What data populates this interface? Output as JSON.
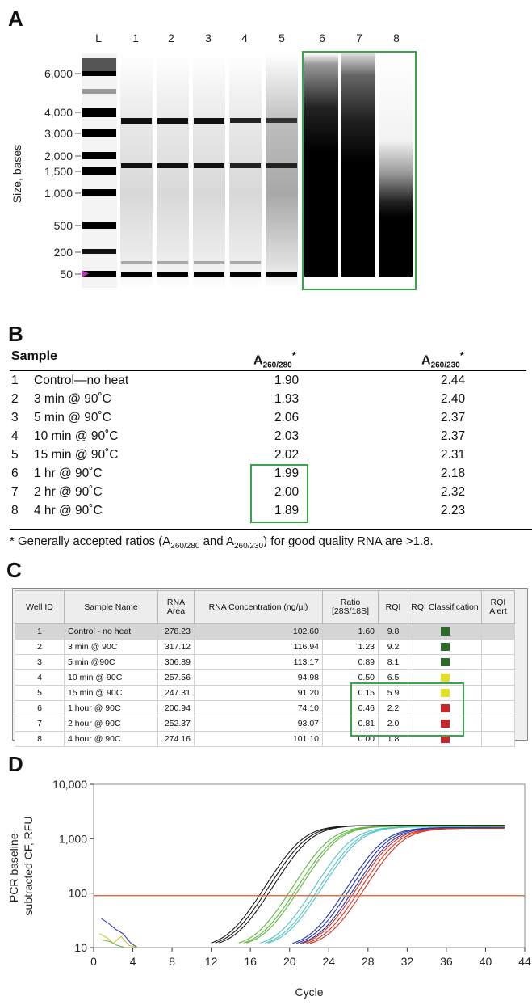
{
  "panels": {
    "a": {
      "letter": "A",
      "lane_labels": [
        "L",
        "1",
        "2",
        "3",
        "4",
        "5",
        "6",
        "7",
        "8"
      ],
      "y_axis_label": "Size, bases",
      "size_ticks": [
        "6,000",
        "4,000",
        "3,000",
        "2,000",
        "1,500",
        "1,000",
        "500",
        "200",
        "50"
      ]
    },
    "b": {
      "letter": "B",
      "header": {
        "sample": "Sample",
        "a260_280": "A",
        "a260_280_sub": "260/280",
        "a260_230": "A",
        "a260_230_sub": "260/230",
        "star": "*"
      },
      "rows": [
        {
          "num": "1",
          "name": "Control—no heat",
          "a280": "1.90",
          "a230": "2.44"
        },
        {
          "num": "2",
          "name": "3 min @ 90˚C",
          "a280": "1.93",
          "a230": "2.40"
        },
        {
          "num": "3",
          "name": "5 min @ 90˚C",
          "a280": "2.06",
          "a230": "2.37"
        },
        {
          "num": "4",
          "name": "10 min @ 90˚C",
          "a280": "2.03",
          "a230": "2.37"
        },
        {
          "num": "5",
          "name": "15 min @ 90˚C",
          "a280": "2.02",
          "a230": "2.31"
        },
        {
          "num": "6",
          "name": "1 hr @ 90˚C",
          "a280": "1.99",
          "a230": "2.18"
        },
        {
          "num": "7",
          "name": "2 hr @ 90˚C",
          "a280": "2.00",
          "a230": "2.32"
        },
        {
          "num": "8",
          "name": "4 hr @ 90˚C",
          "a280": "1.89",
          "a230": "2.23"
        }
      ],
      "footnote_1": "* Generally accepted ratios (A",
      "footnote_sub1": "260/280",
      "footnote_2": " and A",
      "footnote_sub2": "260/230",
      "footnote_3": ") for good quality RNA are >1.8."
    },
    "c": {
      "letter": "C",
      "columns": [
        "Well ID",
        "Sample Name",
        "RNA Area",
        "RNA Concentration (ng/µl)",
        "Ratio [28S/18S]",
        "RQI",
        "RQI Classification",
        "RQI Alert"
      ],
      "rows": [
        {
          "well": "1",
          "name": "Control - no heat",
          "area": "278.23",
          "conc": "102.60",
          "ratio": "1.60",
          "rqi": "9.8",
          "cls": "#2e6b2a"
        },
        {
          "well": "2",
          "name": "3 min @ 90C",
          "area": "317.12",
          "conc": "116.94",
          "ratio": "1.23",
          "rqi": "9.2",
          "cls": "#2e6b2a"
        },
        {
          "well": "3",
          "name": "5 min @90C",
          "area": "306.89",
          "conc": "113.17",
          "ratio": "0.89",
          "rqi": "8.1",
          "cls": "#2e6b2a"
        },
        {
          "well": "4",
          "name": "10 min @ 90C",
          "area": "257.56",
          "conc": "94.98",
          "ratio": "0.50",
          "rqi": "6.5",
          "cls": "#e2e022"
        },
        {
          "well": "5",
          "name": "15 min @ 90C",
          "area": "247.31",
          "conc": "91.20",
          "ratio": "0.15",
          "rqi": "5.9",
          "cls": "#e2e022"
        },
        {
          "well": "6",
          "name": "1 hour @ 90C",
          "area": "200.94",
          "conc": "74.10",
          "ratio": "0.46",
          "rqi": "2.2",
          "cls": "#c8282a"
        },
        {
          "well": "7",
          "name": "2 hour @ 90C",
          "area": "252.37",
          "conc": "93.07",
          "ratio": "0.81",
          "rqi": "2.0",
          "cls": "#c8282a"
        },
        {
          "well": "8",
          "name": "4 hour @ 90C",
          "area": "274.16",
          "conc": "101.10",
          "ratio": "0.00",
          "rqi": "1.8",
          "cls": "#c8282a"
        }
      ]
    },
    "d": {
      "letter": "D"
    }
  },
  "colors": {
    "highlight_green": "#3aa64a"
  },
  "chart_data": {
    "type": "line",
    "title": "",
    "xlabel": "Cycle",
    "ylabel": "PCR baseline-subtracted CF, RFU",
    "ylabel_lines": [
      "PCR baseline-",
      "subtracted CF, RFU"
    ],
    "xlim": [
      0,
      44
    ],
    "ylim": [
      10,
      10000
    ],
    "yscale": "log",
    "x_ticks": [
      "0",
      "4",
      "8",
      "12",
      "16",
      "20",
      "24",
      "28",
      "32",
      "36",
      "40",
      "44"
    ],
    "y_ticks": [
      "10",
      "100",
      "1,000",
      "10,000"
    ],
    "threshold": 90,
    "series": [
      {
        "color": "#1a1a1a",
        "midpoints": [
          21.0,
          21.4,
          21.8
        ],
        "plateau": 1750
      },
      {
        "color": "#5cb83a",
        "midpoints": [
          23.8,
          24.3,
          24.6
        ],
        "plateau": 1700
      },
      {
        "color": "#4fc2c6",
        "midpoints": [
          26.0,
          26.5,
          26.8
        ],
        "plateau": 1650
      },
      {
        "color": "#2233aa",
        "midpoints": [
          29.3,
          29.7,
          30.1
        ],
        "plateau": 1600
      },
      {
        "color": "#d8301e",
        "midpoints": [
          30.3,
          30.7,
          31.1
        ],
        "plateau": 1550
      }
    ]
  }
}
